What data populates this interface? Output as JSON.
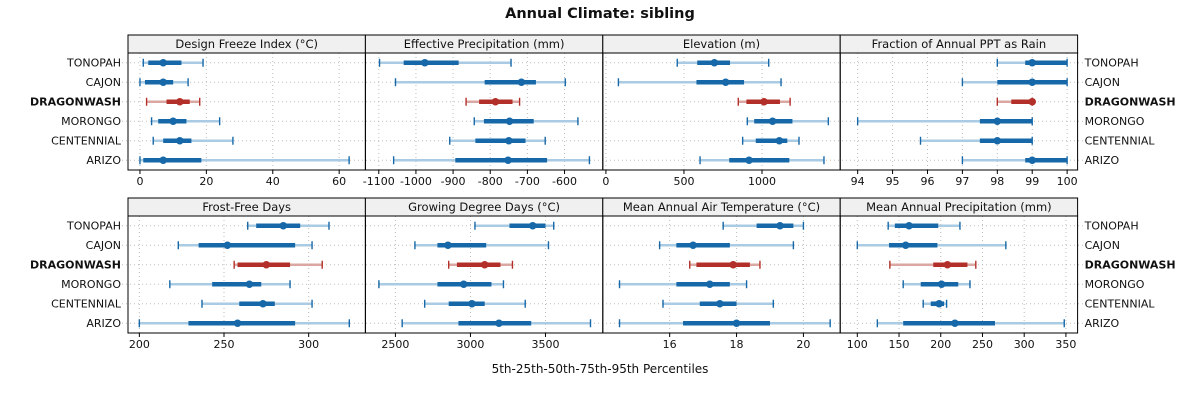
{
  "title": "Annual Climate: sibling",
  "footer": "5th-25th-50th-75th-95th Percentiles",
  "percentile_levels": [
    5,
    25,
    50,
    75,
    95
  ],
  "sites": [
    "TONOPAH",
    "CAJON",
    "DRAGONWASH",
    "MORONGO",
    "CENTENNIAL",
    "ARIZO"
  ],
  "highlight_site": "DRAGONWASH",
  "colors": {
    "blue": "#1668A8",
    "blue_light": "#A9CBE3",
    "red": "#B3302A",
    "red_light": "#DBA7A2",
    "header_bg": "#F0F0F0",
    "panel_border": "#000000",
    "grid": "#BDBDBD",
    "text": "#111111"
  },
  "chart_data": {
    "type": "interval-dotplot",
    "layout": "2 rows x 4 columns, shared site rows, percentiles 5-25-50-75-95",
    "panels": [
      {
        "title": "Design Freeze Index (°C)",
        "ticks": [
          0,
          20,
          40,
          60
        ],
        "xlim": [
          -3.6,
          67.9
        ],
        "values": {
          "TONOPAH": [
            1,
            2.5,
            7,
            12.5,
            19
          ],
          "CAJON": [
            0,
            1.5,
            7,
            10,
            14.5
          ],
          "DRAGONWASH": [
            2,
            8,
            12,
            15,
            18
          ],
          "MORONGO": [
            3.5,
            5.5,
            10,
            14,
            24
          ],
          "CENTENNIAL": [
            4,
            7,
            12,
            15.5,
            28
          ],
          "ARIZO": [
            0,
            1,
            7,
            18.5,
            63
          ]
        }
      },
      {
        "title": "Effective Precipitation (mm)",
        "ticks": [
          -1100,
          -1000,
          -900,
          -800,
          -700,
          -600
        ],
        "xlim": [
          -1136,
          -497
        ],
        "values": {
          "TONOPAH": [
            -1098,
            -1033,
            -976,
            -885,
            -744
          ],
          "CAJON": [
            -1055,
            -815,
            -716,
            -677,
            -598
          ],
          "DRAGONWASH": [
            -865,
            -830,
            -786,
            -740,
            -721
          ],
          "MORONGO": [
            -843,
            -817,
            -748,
            -683,
            -564
          ],
          "CENTENNIAL": [
            -909,
            -840,
            -750,
            -705,
            -652
          ],
          "ARIZO": [
            -1060,
            -894,
            -752,
            -647,
            -533
          ]
        }
      },
      {
        "title": "Elevation (m)",
        "ticks": [
          0,
          500,
          1000
        ],
        "xlim": [
          -20,
          1501
        ],
        "values": {
          "TONOPAH": [
            457,
            585,
            695,
            795,
            1043
          ],
          "CAJON": [
            80,
            580,
            767,
            885,
            1122
          ],
          "DRAGONWASH": [
            848,
            900,
            1013,
            1115,
            1180
          ],
          "MORONGO": [
            906,
            950,
            1068,
            1195,
            1425
          ],
          "CENTENNIAL": [
            876,
            960,
            1111,
            1162,
            1237
          ],
          "ARIZO": [
            603,
            790,
            917,
            1175,
            1397
          ]
        }
      },
      {
        "title": "Fraction of Annual PPT as Rain",
        "ticks": [
          94,
          95,
          96,
          97,
          98,
          99,
          100
        ],
        "xlim": [
          93.5,
          100.3
        ],
        "values": {
          "TONOPAH": [
            98,
            98.8,
            99,
            100,
            100
          ],
          "CAJON": [
            97,
            98,
            99,
            100,
            100
          ],
          "DRAGONWASH": [
            98,
            98.4,
            99,
            99,
            99
          ],
          "MORONGO": [
            94,
            97.5,
            98,
            99,
            99
          ],
          "CENTENNIAL": [
            95.8,
            97.5,
            98,
            99,
            99
          ],
          "ARIZO": [
            97,
            98.8,
            99,
            100,
            100
          ]
        }
      },
      {
        "title": "Frost-Free Days",
        "ticks": [
          200,
          250,
          300
        ],
        "xlim": [
          193.3,
          333.5
        ],
        "values": {
          "TONOPAH": [
            264,
            269,
            285,
            295,
            312
          ],
          "CAJON": [
            223,
            235,
            252,
            292,
            302
          ],
          "DRAGONWASH": [
            256,
            258,
            275,
            289,
            308
          ],
          "MORONGO": [
            218,
            243,
            265,
            272,
            289
          ],
          "CENTENNIAL": [
            237,
            259,
            273,
            280,
            302
          ],
          "ARIZO": [
            200,
            229,
            258,
            292,
            324
          ]
        }
      },
      {
        "title": "Growing Degree Days (°C)",
        "ticks": [
          2500,
          3000,
          3500
        ],
        "xlim": [
          2300,
          3882
        ],
        "values": {
          "TONOPAH": [
            3030,
            3260,
            3415,
            3500,
            3555
          ],
          "CAJON": [
            2630,
            2780,
            2850,
            3105,
            3520
          ],
          "DRAGONWASH": [
            2855,
            2910,
            3095,
            3200,
            3280
          ],
          "MORONGO": [
            2390,
            2780,
            2955,
            3140,
            3220
          ],
          "CENTENNIAL": [
            2695,
            2855,
            3010,
            3095,
            3365
          ],
          "ARIZO": [
            2545,
            2920,
            3190,
            3405,
            3800
          ]
        }
      },
      {
        "title": "Mean Annual Air Temperature (°C)",
        "ticks": [
          16,
          18,
          20
        ],
        "xlim": [
          14.0,
          21.1
        ],
        "values": {
          "TONOPAH": [
            17.6,
            18.6,
            19.3,
            19.7,
            20.0
          ],
          "CAJON": [
            15.7,
            16.2,
            16.7,
            17.8,
            19.7
          ],
          "DRAGONWASH": [
            16.6,
            16.8,
            17.9,
            18.4,
            18.7
          ],
          "MORONGO": [
            14.5,
            16.2,
            17.2,
            17.8,
            18.3
          ],
          "CENTENNIAL": [
            15.8,
            16.9,
            17.5,
            18.0,
            19.1
          ],
          "ARIZO": [
            14.5,
            16.4,
            18.0,
            19.0,
            20.8
          ]
        }
      },
      {
        "title": "Mean Annual Precipitation (mm)",
        "ticks": [
          100,
          150,
          200,
          250,
          300,
          350
        ],
        "xlim": [
          79.5,
          364
        ],
        "values": {
          "TONOPAH": [
            137,
            145,
            162,
            197,
            223
          ],
          "CAJON": [
            100,
            138,
            158,
            196,
            278
          ],
          "DRAGONWASH": [
            139,
            191,
            208,
            232,
            242
          ],
          "MORONGO": [
            155,
            176,
            201,
            221,
            235
          ],
          "CENTENNIAL": [
            179,
            188,
            198,
            204,
            207
          ],
          "ARIZO": [
            124,
            155,
            217,
            265,
            348
          ]
        }
      }
    ]
  }
}
